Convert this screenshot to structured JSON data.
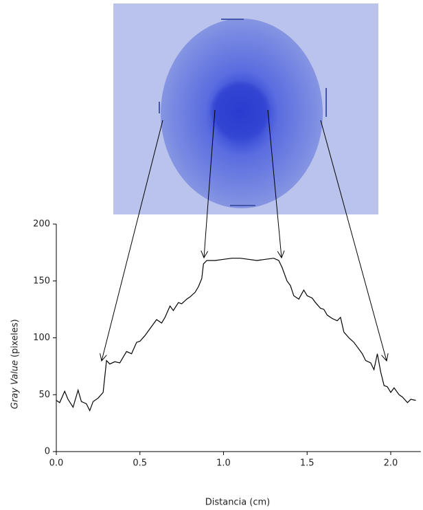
{
  "chart_data": {
    "type": "line",
    "xlabel": "Distancia (cm)",
    "ylabel_italic": "Gray Value",
    "ylabel_rest": "(pixeles)",
    "xlim": [
      0,
      2.18
    ],
    "ylim": [
      0,
      200
    ],
    "xticks": [
      {
        "value": 0,
        "label": "0.0"
      },
      0.5,
      {
        "value": 1,
        "label": "1.0"
      },
      1.5,
      {
        "value": 2,
        "label": "2.0"
      }
    ],
    "yticks": [
      0,
      50,
      100,
      150,
      200
    ],
    "color": "#000000",
    "x": [
      0.0,
      0.02,
      0.05,
      0.07,
      0.1,
      0.13,
      0.15,
      0.18,
      0.2,
      0.22,
      0.25,
      0.28,
      0.3,
      0.32,
      0.35,
      0.38,
      0.4,
      0.42,
      0.45,
      0.48,
      0.5,
      0.53,
      0.55,
      0.58,
      0.6,
      0.63,
      0.65,
      0.68,
      0.7,
      0.73,
      0.75,
      0.78,
      0.8,
      0.83,
      0.85,
      0.87,
      0.88,
      0.9,
      0.95,
      1.0,
      1.05,
      1.1,
      1.15,
      1.2,
      1.25,
      1.3,
      1.33,
      1.35,
      1.38,
      1.4,
      1.42,
      1.45,
      1.48,
      1.5,
      1.53,
      1.55,
      1.58,
      1.6,
      1.62,
      1.65,
      1.68,
      1.7,
      1.72,
      1.75,
      1.78,
      1.8,
      1.83,
      1.85,
      1.88,
      1.9,
      1.92,
      1.94,
      1.96,
      1.98,
      2.0,
      2.02,
      2.05,
      2.07,
      2.1,
      2.12,
      2.15
    ],
    "values": [
      45,
      43,
      53,
      46,
      39,
      54,
      44,
      42,
      36,
      44,
      47,
      52,
      80,
      77,
      79,
      78,
      83,
      88,
      86,
      96,
      97,
      102,
      106,
      112,
      116,
      113,
      118,
      128,
      124,
      131,
      130,
      134,
      136,
      140,
      145,
      152,
      165,
      168,
      168,
      169,
      170,
      170,
      169,
      168,
      169,
      170,
      168,
      162,
      150,
      146,
      137,
      134,
      142,
      137,
      135,
      131,
      126,
      125,
      120,
      117,
      115,
      118,
      105,
      100,
      96,
      92,
      86,
      80,
      78,
      72,
      86,
      70,
      58,
      57,
      52,
      56,
      50,
      48,
      43,
      46,
      45
    ]
  }
}
